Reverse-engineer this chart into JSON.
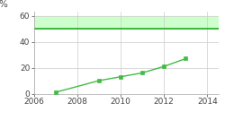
{
  "x_data": [
    2007,
    2009,
    2010,
    2011,
    2012,
    2013
  ],
  "y_data": [
    1,
    10,
    13,
    16,
    21,
    27
  ],
  "target_line_y": 50,
  "target_fill_top": 60,
  "xlim": [
    2006,
    2014.5
  ],
  "ylim": [
    0,
    63
  ],
  "yticks": [
    0,
    20,
    40,
    60
  ],
  "xticks": [
    2006,
    2008,
    2010,
    2012,
    2014
  ],
  "pct_label": "%",
  "line_color": "#44bb44",
  "target_line_color": "#22aa22",
  "fill_color": "#ccffcc",
  "marker": "s",
  "markersize": 3.5,
  "linewidth": 1.0,
  "grid_color": "#cccccc",
  "background_color": "#ffffff",
  "tick_fontsize": 6.5,
  "label_fontsize": 7.5
}
